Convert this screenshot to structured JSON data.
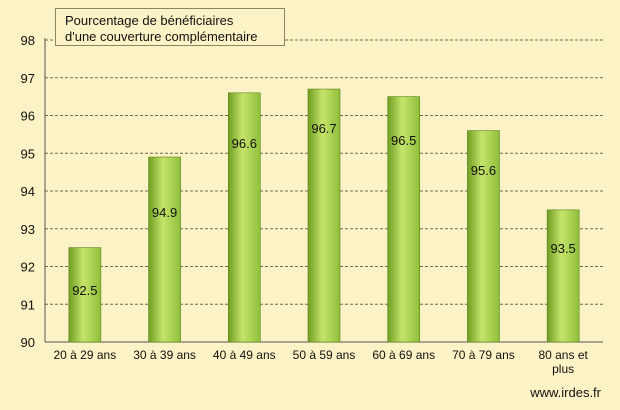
{
  "chart_data": {
    "type": "bar",
    "title_lines": [
      "Pourcentage de bénéficiaires",
      "d'une couverture  complémentaire"
    ],
    "categories": [
      "20 à 29 ans",
      "30 à 39 ans",
      "40 à 49 ans",
      "50 à 59 ans",
      "60 à 69 ans",
      "70 à 79 ans",
      "80 ans et plus"
    ],
    "category_lines": [
      [
        "20 à 29 ans"
      ],
      [
        "30 à 39 ans"
      ],
      [
        "40 à 49 ans"
      ],
      [
        "50 à 59 ans"
      ],
      [
        "60 à 69 ans"
      ],
      [
        "70 à 79 ans"
      ],
      [
        "80 ans et",
        "plus"
      ]
    ],
    "values": [
      92.5,
      94.9,
      96.6,
      96.7,
      96.5,
      95.6,
      93.5
    ],
    "value_labels": [
      "92.5",
      "94.9",
      "96.6",
      "96.7",
      "96.5",
      "95.6",
      "93.5"
    ],
    "ylim": [
      90,
      98
    ],
    "yticks": [
      90,
      91,
      92,
      93,
      94,
      95,
      96,
      97,
      98
    ],
    "grid": true,
    "bar_color": "#8fbf3a",
    "bar_color_light": "#c6e46a",
    "bar_color_dark": "#6f9e22",
    "background": "#fbf3c5"
  },
  "source": "www.irdes.fr"
}
